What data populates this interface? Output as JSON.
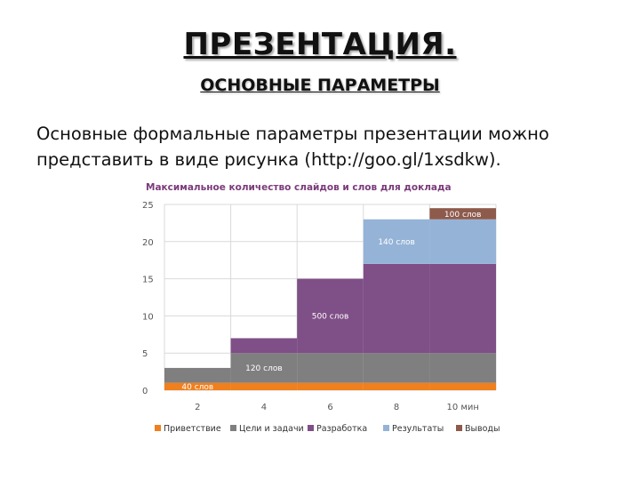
{
  "slide": {
    "title": "ПРЕЗЕНТАЦИЯ.",
    "subtitle": "ОСНОВНЫЕ ПАРАМЕТРЫ",
    "body": "Основные формальные параметры презентации можно представить в виде рисунка (http://goo.gl/1xsdkw)."
  },
  "chart_data": {
    "type": "bar",
    "stacked": true,
    "title": "Максимальное  количество слайдов и слов для доклада",
    "categories": [
      "2",
      "4",
      "6",
      "8",
      "10 мин"
    ],
    "ylim": [
      0,
      25
    ],
    "yticks": [
      0,
      5,
      10,
      15,
      20,
      25
    ],
    "grid": true,
    "legend_position": "bottom",
    "series": [
      {
        "name": "Приветствие",
        "color": "#f07f1e",
        "values": [
          1,
          1,
          1,
          1,
          1
        ]
      },
      {
        "name": "Цели и задачи",
        "color": "#7f7f7f",
        "values": [
          2,
          4,
          4,
          4,
          4
        ]
      },
      {
        "name": "Разработка",
        "color": "#7f4f87",
        "values": [
          0,
          2,
          10,
          12,
          12
        ]
      },
      {
        "name": "Результаты",
        "color": "#95b3d7",
        "values": [
          0,
          0,
          0,
          6,
          6
        ]
      },
      {
        "name": "Выводы",
        "color": "#8e5a4b",
        "values": [
          0,
          0,
          0,
          0,
          1.5
        ]
      }
    ],
    "annotations": [
      {
        "text": "40 слов",
        "x": "2",
        "y": 0.5
      },
      {
        "text": "120 слов",
        "x": "4",
        "y": 3
      },
      {
        "text": "500 слов",
        "x": "6",
        "y": 10
      },
      {
        "text": "140 слов",
        "x": "8",
        "y": 20
      },
      {
        "text": "100 слов",
        "x": "10 мин",
        "y": 23.7
      }
    ]
  }
}
